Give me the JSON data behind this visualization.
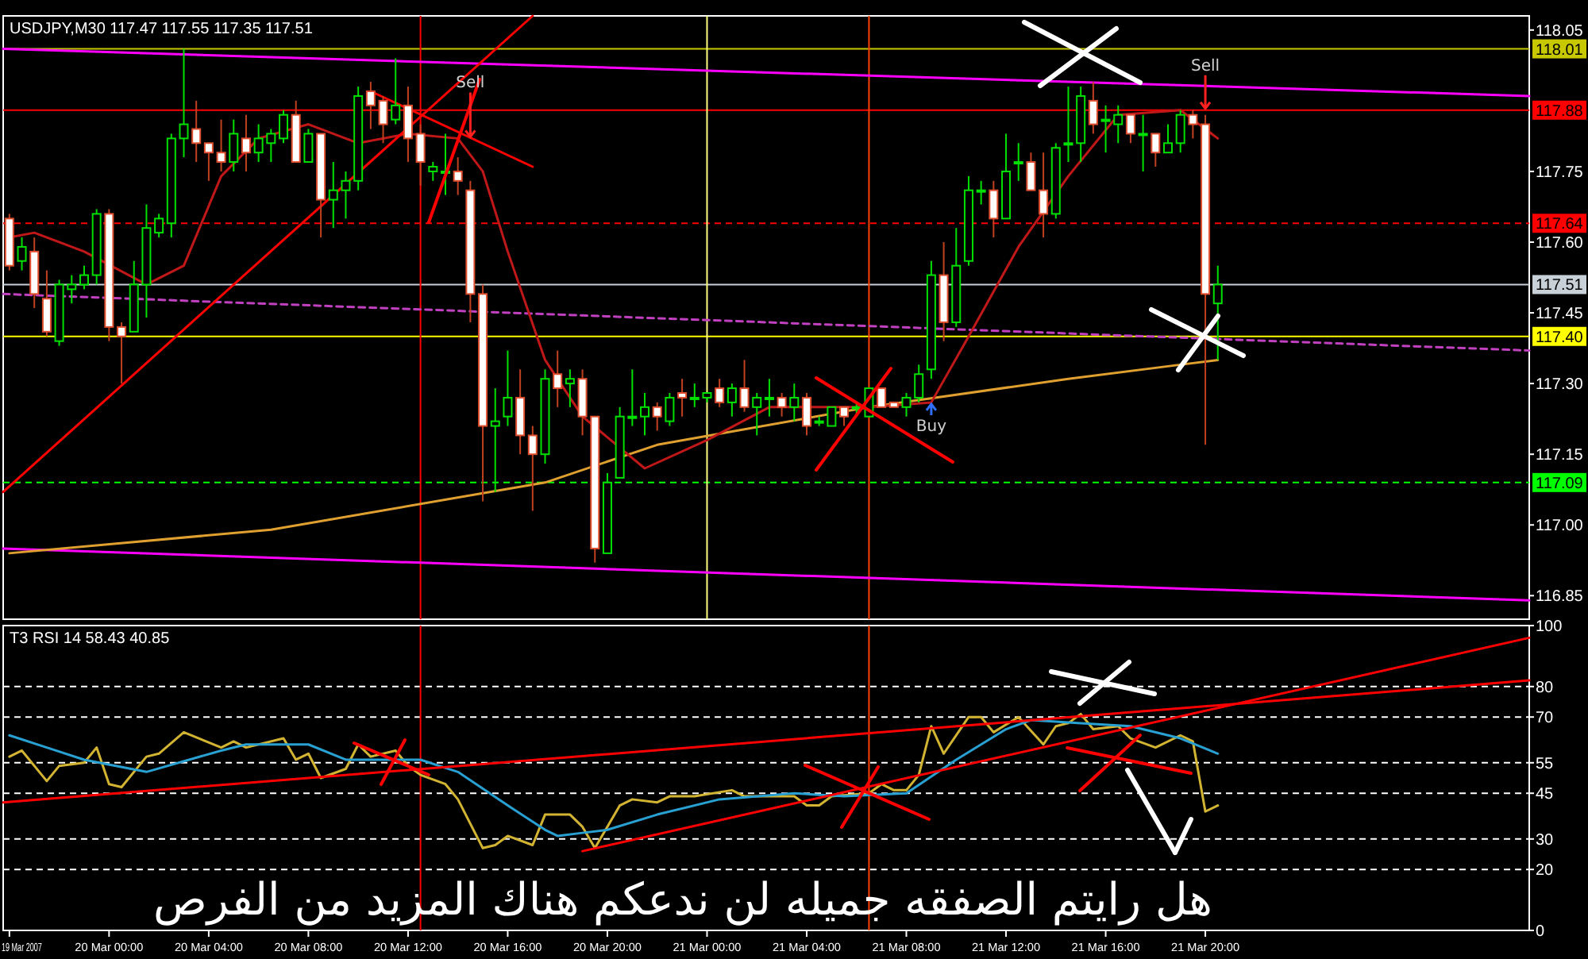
{
  "chart_data": [
    {
      "type": "candlestick",
      "title": "USDJPY,M30  117.47 117.55 117.35 117.51",
      "tick_labels": "y",
      "xlim": [
        "2007-03-19T19:45",
        "2007-03-22T09:00"
      ],
      "ylim": [
        116.8,
        118.08
      ],
      "yticks": [
        118.05,
        117.75,
        {
          "value": 117.6,
          "label": "117.60"
        },
        117.45,
        {
          "value": 117.3,
          "label": "117.30"
        },
        117.15,
        {
          "value": 117.0,
          "label": "117.00"
        },
        116.85
      ],
      "x": [
        "2007-03-19T20:00",
        "2007-03-19T20:30",
        "2007-03-19T21:00",
        "2007-03-19T21:30",
        "2007-03-19T22:00",
        "2007-03-19T22:30",
        "2007-03-19T23:00",
        "2007-03-19T23:30",
        "2007-03-20T00:00",
        "2007-03-20T00:30",
        "2007-03-20T01:00",
        "2007-03-20T01:30",
        "2007-03-20T02:00",
        "2007-03-20T02:30",
        "2007-03-20T03:00",
        "2007-03-20T03:30",
        "2007-03-20T04:00",
        "2007-03-20T04:30",
        "2007-03-20T05:00",
        "2007-03-20T05:30",
        "2007-03-20T06:00",
        "2007-03-20T06:30",
        "2007-03-20T07:00",
        "2007-03-20T07:30",
        "2007-03-20T08:00",
        "2007-03-20T08:30",
        "2007-03-20T09:00",
        "2007-03-20T09:30",
        "2007-03-20T10:00",
        "2007-03-20T10:30",
        "2007-03-20T11:00",
        "2007-03-20T11:30",
        "2007-03-20T12:00",
        "2007-03-20T12:30",
        "2007-03-20T13:00",
        "2007-03-20T13:30",
        "2007-03-20T14:00",
        "2007-03-20T14:30",
        "2007-03-20T15:00",
        "2007-03-20T15:30",
        "2007-03-20T16:00",
        "2007-03-20T16:30",
        "2007-03-20T17:00",
        "2007-03-20T17:30",
        "2007-03-20T18:00",
        "2007-03-20T18:30",
        "2007-03-20T19:00",
        "2007-03-20T19:30",
        "2007-03-20T20:00",
        "2007-03-20T20:30",
        "2007-03-20T21:00",
        "2007-03-20T21:30",
        "2007-03-20T22:00",
        "2007-03-20T22:30",
        "2007-03-20T23:00",
        "2007-03-20T23:30",
        "2007-03-21T00:00",
        "2007-03-21T00:30",
        "2007-03-21T01:00",
        "2007-03-21T01:30",
        "2007-03-21T02:00",
        "2007-03-21T02:30",
        "2007-03-21T03:00",
        "2007-03-21T03:30",
        "2007-03-21T04:00",
        "2007-03-21T04:30",
        "2007-03-21T05:00",
        "2007-03-21T05:30",
        "2007-03-21T06:00",
        "2007-03-21T06:30",
        "2007-03-21T07:00",
        "2007-03-21T07:30",
        "2007-03-21T08:00",
        "2007-03-21T08:30",
        "2007-03-21T09:00",
        "2007-03-21T09:30",
        "2007-03-21T10:00",
        "2007-03-21T10:30",
        "2007-03-21T11:00",
        "2007-03-21T11:30",
        "2007-03-21T12:00",
        "2007-03-21T12:30",
        "2007-03-21T13:00",
        "2007-03-21T13:30",
        "2007-03-21T14:00",
        "2007-03-21T14:30",
        "2007-03-21T15:00",
        "2007-03-21T15:30",
        "2007-03-21T16:00",
        "2007-03-21T16:30",
        "2007-03-21T17:00",
        "2007-03-21T17:30",
        "2007-03-21T18:00",
        "2007-03-21T18:30",
        "2007-03-21T19:00",
        "2007-03-21T19:30",
        "2007-03-21T20:00",
        "2007-03-21T20:30"
      ],
      "ohlc": [
        [
          117.65,
          117.66,
          117.54,
          117.55
        ],
        [
          117.56,
          117.61,
          117.54,
          117.59
        ],
        [
          117.58,
          117.61,
          117.46,
          117.49
        ],
        [
          117.48,
          117.54,
          117.4,
          117.41
        ],
        [
          117.39,
          117.52,
          117.38,
          117.51
        ],
        [
          117.5,
          117.53,
          117.47,
          117.51
        ],
        [
          117.51,
          117.55,
          117.5,
          117.53
        ],
        [
          117.53,
          117.67,
          117.51,
          117.66
        ],
        [
          117.66,
          117.67,
          117.39,
          117.42
        ],
        [
          117.42,
          117.43,
          117.3,
          117.4
        ],
        [
          117.41,
          117.56,
          117.41,
          117.51
        ],
        [
          117.51,
          117.68,
          117.44,
          117.63
        ],
        [
          117.62,
          117.66,
          117.61,
          117.65
        ],
        [
          117.64,
          117.83,
          117.61,
          117.82
        ],
        [
          117.82,
          118.01,
          117.78,
          117.85
        ],
        [
          117.84,
          117.9,
          117.77,
          117.81
        ],
        [
          117.81,
          117.81,
          117.73,
          117.79
        ],
        [
          117.79,
          117.86,
          117.75,
          117.77
        ],
        [
          117.77,
          117.86,
          117.75,
          117.83
        ],
        [
          117.82,
          117.87,
          117.75,
          117.79
        ],
        [
          117.79,
          117.85,
          117.77,
          117.82
        ],
        [
          117.81,
          117.84,
          117.77,
          117.83
        ],
        [
          117.82,
          117.88,
          117.81,
          117.87
        ],
        [
          117.87,
          117.9,
          117.77,
          117.77
        ],
        [
          117.77,
          117.84,
          117.77,
          117.83
        ],
        [
          117.83,
          117.83,
          117.61,
          117.69
        ],
        [
          117.69,
          117.77,
          117.63,
          117.71
        ],
        [
          117.71,
          117.75,
          117.65,
          117.73
        ],
        [
          117.73,
          117.93,
          117.71,
          117.91
        ],
        [
          117.92,
          117.94,
          117.84,
          117.89
        ],
        [
          117.9,
          117.91,
          117.81,
          117.85
        ],
        [
          117.86,
          117.99,
          117.85,
          117.89
        ],
        [
          117.89,
          117.93,
          117.77,
          117.82
        ],
        [
          117.83,
          117.85,
          117.72,
          117.77
        ],
        [
          117.75,
          117.77,
          117.73,
          117.76
        ],
        [
          117.75,
          117.83,
          117.7,
          117.75
        ],
        [
          117.75,
          117.78,
          117.7,
          117.73
        ],
        [
          117.71,
          117.73,
          117.43,
          117.49
        ],
        [
          117.49,
          117.51,
          117.05,
          117.21
        ],
        [
          117.21,
          117.29,
          117.07,
          117.22
        ],
        [
          117.23,
          117.37,
          117.21,
          117.27
        ],
        [
          117.27,
          117.33,
          117.15,
          117.19
        ],
        [
          117.19,
          117.21,
          117.03,
          117.15
        ],
        [
          117.15,
          117.33,
          117.13,
          117.31
        ],
        [
          117.32,
          117.37,
          117.25,
          117.29
        ],
        [
          117.3,
          117.33,
          117.25,
          117.31
        ],
        [
          117.31,
          117.33,
          117.19,
          117.23
        ],
        [
          117.23,
          117.23,
          116.92,
          116.95
        ],
        [
          116.94,
          117.11,
          116.94,
          117.09
        ],
        [
          117.1,
          117.25,
          117.1,
          117.23
        ],
        [
          117.23,
          117.33,
          117.21,
          117.23
        ],
        [
          117.23,
          117.28,
          117.19,
          117.25
        ],
        [
          117.25,
          117.26,
          117.2,
          117.23
        ],
        [
          117.22,
          117.28,
          117.21,
          117.27
        ],
        [
          117.28,
          117.31,
          117.23,
          117.27
        ],
        [
          117.27,
          117.3,
          117.25,
          117.27
        ],
        [
          117.27,
          117.28,
          117.26,
          117.28
        ],
        [
          117.29,
          117.31,
          117.25,
          117.26
        ],
        [
          117.26,
          117.3,
          117.23,
          117.29
        ],
        [
          117.29,
          117.35,
          117.24,
          117.25
        ],
        [
          117.25,
          117.28,
          117.19,
          117.27
        ],
        [
          117.27,
          117.31,
          117.23,
          117.27
        ],
        [
          117.27,
          117.28,
          117.23,
          117.25
        ],
        [
          117.25,
          117.3,
          117.22,
          117.27
        ],
        [
          117.27,
          117.28,
          117.19,
          117.21
        ],
        [
          117.22,
          117.23,
          117.21,
          117.22
        ],
        [
          117.21,
          117.25,
          117.21,
          117.25
        ],
        [
          117.25,
          117.25,
          117.21,
          117.23
        ],
        [
          117.25,
          117.26,
          117.23,
          117.25
        ],
        [
          117.23,
          117.29,
          117.23,
          117.29
        ],
        [
          117.29,
          117.29,
          117.25,
          117.25
        ],
        [
          117.26,
          117.26,
          117.25,
          117.25
        ],
        [
          117.25,
          117.28,
          117.23,
          117.27
        ],
        [
          117.27,
          117.34,
          117.26,
          117.32
        ],
        [
          117.33,
          117.56,
          117.31,
          117.53
        ],
        [
          117.53,
          117.6,
          117.39,
          117.43
        ],
        [
          117.43,
          117.63,
          117.42,
          117.55
        ],
        [
          117.56,
          117.74,
          117.55,
          117.71
        ],
        [
          117.71,
          117.73,
          117.68,
          117.71
        ],
        [
          117.71,
          117.73,
          117.61,
          117.65
        ],
        [
          117.65,
          117.83,
          117.65,
          117.75
        ],
        [
          117.77,
          117.81,
          117.73,
          117.77
        ],
        [
          117.77,
          117.79,
          117.71,
          117.71
        ],
        [
          117.71,
          117.79,
          117.61,
          117.66
        ],
        [
          117.66,
          117.81,
          117.65,
          117.8
        ],
        [
          117.81,
          117.93,
          117.77,
          117.81
        ],
        [
          117.81,
          117.93,
          117.77,
          117.91
        ],
        [
          117.9,
          117.94,
          117.83,
          117.85
        ],
        [
          117.86,
          117.89,
          117.79,
          117.86
        ],
        [
          117.85,
          117.89,
          117.81,
          117.87
        ],
        [
          117.87,
          117.87,
          117.81,
          117.83
        ],
        [
          117.83,
          117.87,
          117.75,
          117.83
        ],
        [
          117.83,
          117.83,
          117.76,
          117.79
        ],
        [
          117.79,
          117.85,
          117.79,
          117.81
        ],
        [
          117.81,
          117.88,
          117.79,
          117.87
        ],
        [
          117.87,
          117.88,
          117.82,
          117.85
        ],
        [
          117.85,
          117.87,
          117.17,
          117.49
        ],
        [
          117.47,
          117.55,
          117.35,
          117.51
        ]
      ],
      "series": [
        {
          "type": "line",
          "color": "#ff00ff",
          "x": [
            "2007-03-19T19:45",
            "2007-03-22T09:00"
          ],
          "values": [
            118.01,
            117.91
          ]
        },
        {
          "type": "line",
          "color": "#ff00ff",
          "x": [
            "2007-03-19T19:45",
            "2007-03-22T09:00"
          ],
          "values": [
            116.95,
            116.84
          ]
        },
        {
          "type": "line",
          "color": "#c040c0",
          "line_style": "dashed",
          "x": [
            "2007-03-19T19:45",
            "2007-03-22T09:00"
          ],
          "values": [
            117.49,
            117.37
          ]
        },
        {
          "type": "line",
          "color": "#e0a030",
          "x": [
            "2007-03-19T20:00",
            "2007-03-20T06:30",
            "2007-03-20T17:30",
            "2007-03-20T22:00",
            "2007-03-21T06:30",
            "2007-03-21T14:30",
            "2007-03-21T19:00",
            "2007-03-21T20:30"
          ],
          "values": [
            116.94,
            116.99,
            117.09,
            117.17,
            117.25,
            117.31,
            117.34,
            117.35
          ]
        },
        {
          "type": "line",
          "color": "#c01818",
          "x": [
            "2007-03-19T20:00",
            "2007-03-19T21:00",
            "2007-03-19T23:00",
            "2007-03-20T01:30",
            "2007-03-20T03:00",
            "2007-03-20T04:30",
            "2007-03-20T06:00",
            "2007-03-20T08:00",
            "2007-03-20T10:00",
            "2007-03-20T12:00",
            "2007-03-20T14:00",
            "2007-03-20T15:00",
            "2007-03-20T16:00",
            "2007-03-20T17:30",
            "2007-03-20T19:00",
            "2007-03-20T21:30",
            "2007-03-21T00:00",
            "2007-03-21T02:30",
            "2007-03-21T06:30",
            "2007-03-21T09:00",
            "2007-03-21T10:30",
            "2007-03-21T12:30",
            "2007-03-21T14:30",
            "2007-03-21T16:30",
            "2007-03-21T19:00",
            "2007-03-21T20:30"
          ],
          "values": [
            117.61,
            117.62,
            117.58,
            117.51,
            117.55,
            117.74,
            117.82,
            117.85,
            117.81,
            117.83,
            117.82,
            117.75,
            117.58,
            117.35,
            117.23,
            117.12,
            117.18,
            117.25,
            117.25,
            117.26,
            117.4,
            117.59,
            117.74,
            117.87,
            117.88,
            117.82
          ]
        },
        {
          "type": "line",
          "color": "#ff0000",
          "x": [
            "2007-03-19T19:45",
            "2007-03-20T17:00"
          ],
          "values": [
            117.07,
            118.08
          ]
        },
        {
          "type": "line",
          "color": "#ff0000",
          "x": [
            "2007-03-20T10:30",
            "2007-03-20T17:00"
          ],
          "values": [
            117.92,
            117.76
          ]
        }
      ],
      "ref_lines": [
        {
          "axis": "y",
          "value": 118.01,
          "label": "118.01",
          "color": "#c8c800"
        },
        {
          "axis": "y",
          "value": 117.88,
          "label": "117.88",
          "color": "#ff0000"
        },
        {
          "axis": "y",
          "value": 117.64,
          "label": "117.64",
          "color": "#ff0000",
          "line_style": "dashed"
        },
        {
          "axis": "y",
          "value": 117.51,
          "label": "117.51",
          "color": "#c8d0d8"
        },
        {
          "axis": "y",
          "value": 117.4,
          "label": "117.40",
          "color": "#ffff00"
        },
        {
          "axis": "y",
          "value": 117.09,
          "label": "117.09",
          "color": "#00ff00",
          "line_style": "dashed"
        },
        {
          "axis": "x",
          "value": "2007-03-21T00:00",
          "color": "#ffff80"
        },
        {
          "axis": "x",
          "value": "2007-03-20T12:30",
          "color": "#ff0000"
        },
        {
          "axis": "x",
          "value": "2007-03-21T06:30",
          "color": "#ff4000"
        }
      ],
      "annotations": [
        {
          "text": "Sell",
          "x": "2007-03-20T14:30",
          "y": 117.82
        },
        {
          "text": "Sell",
          "x": "2007-03-21T20:00",
          "y": 117.88
        },
        {
          "text": "Buy",
          "x": "2007-03-21T09:00",
          "y": 117.26
        }
      ]
    },
    {
      "type": "line",
      "title": "T3 RSI 14 58.43 40.85",
      "xlim": [
        "2007-03-19T19:45",
        "2007-03-22T09:00"
      ],
      "ylim": [
        0,
        100
      ],
      "yticks": [
        0,
        20,
        30,
        45,
        55,
        70,
        80,
        100
      ],
      "grid": "y",
      "xticks": [
        {
          "value": "2007-03-19T20:00",
          "label": "19 Mar 2007"
        },
        {
          "value": "2007-03-20T00:00",
          "label": "20 Mar 00:00"
        },
        {
          "value": "2007-03-20T04:00",
          "label": "20 Mar 04:00"
        },
        {
          "value": "2007-03-20T08:00",
          "label": "20 Mar 08:00"
        },
        {
          "value": "2007-03-20T12:00",
          "label": "20 Mar 12:00"
        },
        {
          "value": "2007-03-20T16:00",
          "label": "20 Mar 16:00"
        },
        {
          "value": "2007-03-20T20:00",
          "label": "20 Mar 20:00"
        },
        {
          "value": "2007-03-21T00:00",
          "label": "21 Mar 00:00"
        },
        {
          "value": "2007-03-21T04:00",
          "label": "21 Mar 04:00"
        },
        {
          "value": "2007-03-21T08:00",
          "label": "21 Mar 08:00"
        },
        {
          "value": "2007-03-21T12:00",
          "label": "21 Mar 12:00"
        },
        {
          "value": "2007-03-21T16:00",
          "label": "21 Mar 16:00"
        },
        {
          "value": "2007-03-21T20:00",
          "label": "21 Mar 20:00"
        }
      ],
      "series": [
        {
          "color": "#d2b432",
          "x": [
            "2007-03-19T20:00",
            "2007-03-19T20:30",
            "2007-03-19T21:30",
            "2007-03-19T22:00",
            "2007-03-19T23:00",
            "2007-03-19T23:30",
            "2007-03-20T00:00",
            "2007-03-20T00:30",
            "2007-03-20T01:30",
            "2007-03-20T02:00",
            "2007-03-20T03:00",
            "2007-03-20T04:30",
            "2007-03-20T05:00",
            "2007-03-20T05:30",
            "2007-03-20T07:00",
            "2007-03-20T07:30",
            "2007-03-20T08:00",
            "2007-03-20T08:30",
            "2007-03-20T09:30",
            "2007-03-20T10:00",
            "2007-03-20T10:30",
            "2007-03-20T11:30",
            "2007-03-20T12:00",
            "2007-03-20T12:30",
            "2007-03-20T13:30",
            "2007-03-20T14:00",
            "2007-03-20T15:00",
            "2007-03-20T15:30",
            "2007-03-20T16:00",
            "2007-03-20T17:00",
            "2007-03-20T17:30",
            "2007-03-20T18:30",
            "2007-03-20T19:00",
            "2007-03-20T19:30",
            "2007-03-20T20:30",
            "2007-03-20T21:00",
            "2007-03-20T22:00",
            "2007-03-20T22:30",
            "2007-03-20T23:30",
            "2007-03-21T01:00",
            "2007-03-21T01:30",
            "2007-03-21T03:00",
            "2007-03-21T03:30",
            "2007-03-21T04:00",
            "2007-03-21T04:30",
            "2007-03-21T05:00",
            "2007-03-21T06:30",
            "2007-03-21T07:00",
            "2007-03-21T07:30",
            "2007-03-21T08:00",
            "2007-03-21T08:30",
            "2007-03-21T09:00",
            "2007-03-21T09:30",
            "2007-03-21T10:30",
            "2007-03-21T11:00",
            "2007-03-21T11:30",
            "2007-03-21T12:30",
            "2007-03-21T13:30",
            "2007-03-21T14:00",
            "2007-03-21T14:30",
            "2007-03-21T15:00",
            "2007-03-21T15:30",
            "2007-03-21T16:30",
            "2007-03-21T17:00",
            "2007-03-21T18:00",
            "2007-03-21T19:00",
            "2007-03-21T19:30",
            "2007-03-21T20:00",
            "2007-03-21T20:30"
          ],
          "values": [
            57,
            59,
            49,
            54,
            55,
            60,
            48,
            47,
            57,
            58,
            65,
            60,
            62,
            60,
            63,
            56,
            58,
            50,
            53,
            61,
            57,
            59,
            54,
            51,
            48,
            43,
            27,
            28,
            31,
            28,
            38,
            38,
            34,
            27,
            41,
            43,
            42,
            44,
            44,
            46,
            44,
            44,
            44,
            41,
            41,
            44,
            45,
            48,
            46,
            46,
            51,
            67,
            58,
            70,
            70,
            65,
            70,
            61,
            67,
            68,
            71,
            66,
            67,
            63,
            60,
            64,
            62,
            39,
            41
          ]
        },
        {
          "color": "#28a0d2",
          "x": [
            "2007-03-19T20:00",
            "2007-03-19T21:30",
            "2007-03-19T23:00",
            "2007-03-20T01:30",
            "2007-03-20T04:30",
            "2007-03-20T05:30",
            "2007-03-20T08:00",
            "2007-03-20T09:30",
            "2007-03-20T12:30",
            "2007-03-20T14:00",
            "2007-03-20T16:00",
            "2007-03-20T17:30",
            "2007-03-20T18:00",
            "2007-03-20T19:00",
            "2007-03-20T20:00",
            "2007-03-20T22:00",
            "2007-03-21T00:30",
            "2007-03-21T03:30",
            "2007-03-21T05:30",
            "2007-03-21T08:00",
            "2007-03-21T10:00",
            "2007-03-21T12:00",
            "2007-03-21T13:00",
            "2007-03-21T15:00",
            "2007-03-21T17:00",
            "2007-03-21T19:00",
            "2007-03-21T20:30"
          ],
          "values": [
            64,
            60,
            56,
            52,
            59,
            61,
            61,
            56,
            56,
            52,
            41,
            33,
            31,
            32,
            33,
            38,
            43,
            45,
            44,
            45,
            56,
            66,
            69,
            68,
            67,
            63,
            58
          ]
        },
        {
          "color": "#ff0000",
          "x": [
            "2007-03-19T19:45",
            "2007-03-22T09:00"
          ],
          "values": [
            42,
            82
          ]
        },
        {
          "color": "#ff0000",
          "x": [
            "2007-03-20T19:00",
            "2007-03-22T09:00"
          ],
          "values": [
            26,
            96
          ]
        }
      ],
      "ref_lines": [
        {
          "axis": "x",
          "value": "2007-03-20T12:30",
          "color": "#ff0000"
        },
        {
          "axis": "x",
          "value": "2007-03-21T06:30",
          "color": "#ff4000"
        }
      ],
      "annotations": [
        "هل رايتم الصفقه جميله لن ندعكم  هناك المزيد من الفرص"
      ]
    }
  ]
}
